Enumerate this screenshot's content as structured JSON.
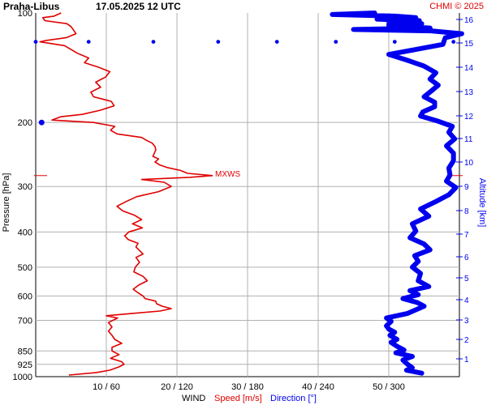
{
  "header": {
    "station": "Praha-Libus",
    "datetime": "17.05.2025 12 UTC",
    "copyright": "CHMI © 2025"
  },
  "axes": {
    "left_label": "Pressure [hPa]",
    "right_label": "Altitude [km]",
    "bottom_prefix": "WIND",
    "bottom_speed": "Speed [m/s]",
    "bottom_direction": "Direction [°]",
    "mxws_label": "MXWS"
  },
  "colors": {
    "speed": "#e00000",
    "direction": "#0000ee",
    "grid": "#b0b0b0",
    "mxws_line": "#e00000"
  },
  "chart_data": {
    "type": "line",
    "y_axis": {
      "quantity": "pressure",
      "unit": "hPa",
      "scale": "log",
      "range": [
        1000,
        100
      ],
      "ticks": [
        100,
        200,
        300,
        400,
        500,
        600,
        700,
        850,
        925,
        1000
      ]
    },
    "y2_axis": {
      "quantity": "altitude",
      "unit": "km",
      "ticks": [
        1,
        2,
        3,
        4,
        5,
        6,
        7,
        8,
        9,
        10,
        11,
        12,
        13,
        14,
        15,
        16
      ]
    },
    "x_axis": {
      "ticks": [
        "10 / 60",
        "20 / 120",
        "30 / 180",
        "40 / 240",
        "50 / 300"
      ],
      "speed_range_ms": [
        0,
        60
      ],
      "direction_range_deg": [
        0,
        360
      ]
    },
    "grid": true,
    "max_wind_pressure_hPa": 280,
    "series": [
      {
        "name": "Speed [m/s]",
        "unit": "m/s",
        "points": [
          [
            990,
            4.7
          ],
          [
            975,
            8.5
          ],
          [
            960,
            10.5
          ],
          [
            940,
            11.8
          ],
          [
            925,
            12.5
          ],
          [
            910,
            12.2
          ],
          [
            890,
            10.6
          ],
          [
            870,
            11.8
          ],
          [
            850,
            10.8
          ],
          [
            830,
            10.8
          ],
          [
            810,
            12.2
          ],
          [
            790,
            11.2
          ],
          [
            770,
            10.8
          ],
          [
            750,
            10.3
          ],
          [
            730,
            10.8
          ],
          [
            710,
            10.3
          ],
          [
            690,
            11.6
          ],
          [
            680,
            10.0
          ],
          [
            670,
            13.7
          ],
          [
            660,
            17.6
          ],
          [
            650,
            19.2
          ],
          [
            640,
            17.9
          ],
          [
            630,
            17.1
          ],
          [
            620,
            17.0
          ],
          [
            610,
            15.5
          ],
          [
            600,
            15.2
          ],
          [
            590,
            14.6
          ],
          [
            575,
            13.8
          ],
          [
            560,
            14.6
          ],
          [
            545,
            15.8
          ],
          [
            530,
            15.2
          ],
          [
            515,
            13.9
          ],
          [
            500,
            14.1
          ],
          [
            485,
            14.7
          ],
          [
            470,
            14.2
          ],
          [
            460,
            15.2
          ],
          [
            450,
            14.7
          ],
          [
            440,
            14.2
          ],
          [
            430,
            14.5
          ],
          [
            420,
            13.1
          ],
          [
            410,
            12.6
          ],
          [
            400,
            13.2
          ],
          [
            390,
            15.1
          ],
          [
            380,
            13.7
          ],
          [
            370,
            15.0
          ],
          [
            360,
            14.0
          ],
          [
            350,
            12.3
          ],
          [
            340,
            11.5
          ],
          [
            330,
            12.8
          ],
          [
            320,
            14.3
          ],
          [
            310,
            17.4
          ],
          [
            300,
            19.2
          ],
          [
            292,
            18.2
          ],
          [
            287,
            15.0
          ],
          [
            283,
            21.8
          ],
          [
            280,
            25.0
          ],
          [
            276,
            21.5
          ],
          [
            271,
            20.5
          ],
          [
            266,
            18.6
          ],
          [
            262,
            17.6
          ],
          [
            257,
            16.9
          ],
          [
            252,
            17.4
          ],
          [
            248,
            16.6
          ],
          [
            243,
            16.8
          ],
          [
            238,
            17.0
          ],
          [
            233,
            16.9
          ],
          [
            228,
            16.5
          ],
          [
            224,
            15.7
          ],
          [
            220,
            15.0
          ],
          [
            215,
            11.5
          ],
          [
            210,
            10.6
          ],
          [
            205,
            11.2
          ],
          [
            200,
            8.2
          ],
          [
            197,
            2.3
          ],
          [
            193,
            3.5
          ],
          [
            190,
            6.6
          ],
          [
            185,
            9.2
          ],
          [
            180,
            11.1
          ],
          [
            175,
            10.7
          ],
          [
            170,
            8.2
          ],
          [
            165,
            7.8
          ],
          [
            160,
            9.2
          ],
          [
            155,
            8.5
          ],
          [
            150,
            9.9
          ],
          [
            145,
            10.5
          ],
          [
            141,
            8.9
          ],
          [
            137,
            6.9
          ],
          [
            133,
            7.5
          ],
          [
            129,
            5.9
          ],
          [
            126,
            5.0
          ],
          [
            123,
            4.1
          ],
          [
            120,
            0.6
          ],
          [
            119,
            1.5
          ],
          [
            117,
            4.3
          ],
          [
            114,
            5.7
          ],
          [
            111,
            5.3
          ],
          [
            109,
            5.0
          ],
          [
            107,
            4.4
          ],
          [
            105,
            1.3
          ],
          [
            103,
            1.0
          ],
          [
            102,
            2.6
          ],
          [
            100,
            3.6
          ]
        ]
      },
      {
        "name": "Direction [°]",
        "unit": "deg",
        "points": [
          [
            978,
            328
          ],
          [
            960,
            315
          ],
          [
            945,
            320
          ],
          [
            925,
            316
          ],
          [
            900,
            312
          ],
          [
            880,
            320
          ],
          [
            860,
            306
          ],
          [
            845,
            313
          ],
          [
            825,
            307
          ],
          [
            805,
            302
          ],
          [
            790,
            307
          ],
          [
            770,
            301
          ],
          [
            755,
            305
          ],
          [
            740,
            300
          ],
          [
            725,
            298
          ],
          [
            705,
            302
          ],
          [
            690,
            298
          ],
          [
            670,
            316
          ],
          [
            655,
            323
          ],
          [
            640,
            330
          ],
          [
            625,
            324
          ],
          [
            610,
            312
          ],
          [
            595,
            325
          ],
          [
            580,
            318
          ],
          [
            565,
            334
          ],
          [
            545,
            325
          ],
          [
            520,
            327
          ],
          [
            500,
            320
          ],
          [
            482,
            325
          ],
          [
            465,
            322
          ],
          [
            448,
            335
          ],
          [
            432,
            330
          ],
          [
            415,
            318
          ],
          [
            398,
            323
          ],
          [
            380,
            320
          ],
          [
            362,
            334
          ],
          [
            346,
            327
          ],
          [
            330,
            340
          ],
          [
            316,
            351
          ],
          [
            302,
            357
          ],
          [
            290,
            349
          ],
          [
            279,
            352
          ],
          [
            267,
            351
          ],
          [
            255,
            355
          ],
          [
            243,
            355
          ],
          [
            232,
            349
          ],
          [
            222,
            356
          ],
          [
            213,
            351
          ],
          [
            205,
            354
          ],
          [
            198,
            341
          ],
          [
            192,
            327
          ],
          [
            187,
            329
          ],
          [
            181,
            339
          ],
          [
            176,
            339
          ],
          [
            170,
            330
          ],
          [
            164,
            336
          ],
          [
            158,
            342
          ],
          [
            152,
            335
          ],
          [
            146,
            340
          ],
          [
            140,
            330
          ],
          [
            135,
            316
          ],
          [
            130,
            300
          ],
          [
            126,
            323
          ],
          [
            122,
            346
          ],
          [
            117,
            348
          ],
          [
            114,
            362
          ],
          [
            112,
            336
          ],
          [
            111,
            270
          ],
          [
            110,
            335
          ],
          [
            109,
            314
          ],
          [
            108,
            300
          ],
          [
            107,
            328
          ],
          [
            106,
            300
          ],
          [
            105,
            326
          ],
          [
            104,
            290
          ],
          [
            103,
            323
          ],
          [
            102,
            305
          ],
          [
            101,
            252
          ],
          [
            100,
            288
          ]
        ]
      }
    ]
  }
}
